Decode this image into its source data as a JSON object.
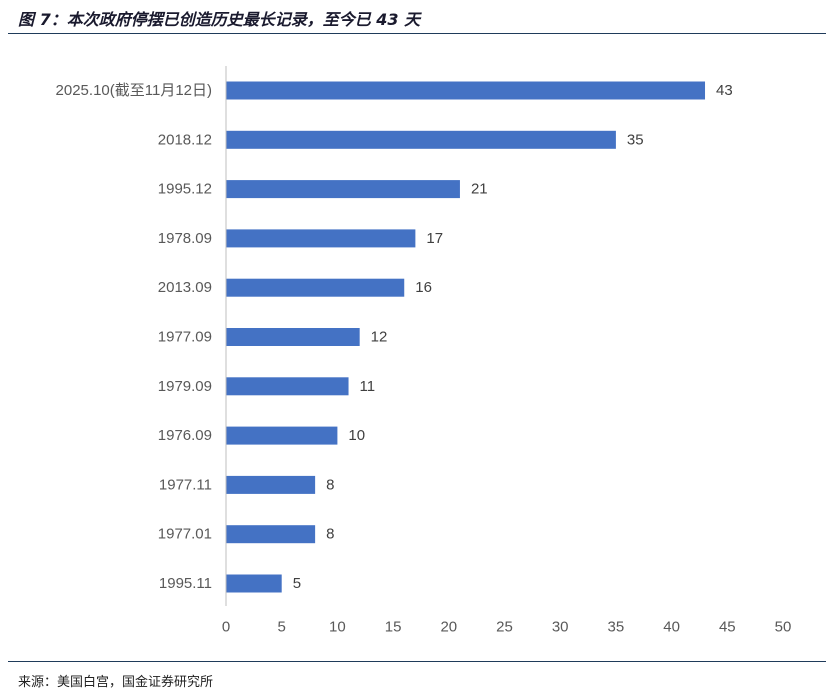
{
  "figure": {
    "title": "图 7：本次政府停摆已创造历史最长记录，至今已 43 天",
    "source": "来源：美国白宫，国金证券研究所"
  },
  "chart_data": {
    "type": "bar",
    "orientation": "horizontal",
    "categories": [
      "2025.10(截至11月12日)",
      "2018.12",
      "1995.12",
      "1978.09",
      "2013.09",
      "1977.09",
      "1979.09",
      "1976.09",
      "1977.11",
      "1977.01",
      "1995.11"
    ],
    "values": [
      43,
      35,
      21,
      17,
      16,
      12,
      11,
      10,
      8,
      8,
      5
    ],
    "xlim": [
      0,
      50
    ],
    "xticks": [
      0,
      5,
      10,
      15,
      20,
      25,
      30,
      35,
      40,
      45,
      50
    ],
    "bar_color": "#4472c4",
    "grid": false,
    "legend": "none",
    "data_labels": true
  }
}
